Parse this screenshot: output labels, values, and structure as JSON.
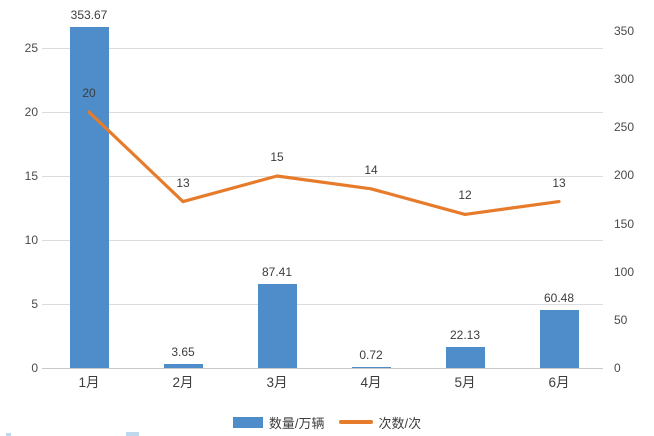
{
  "chart_data": {
    "type": "bar",
    "subtype": "combo-bar-line-dual-axis",
    "title": "",
    "categories": [
      "1月",
      "2月",
      "3月",
      "4月",
      "5月",
      "6月"
    ],
    "series": [
      {
        "name": "数量/万辆",
        "type": "bar",
        "y_axis": "right",
        "color": "#4e8cca",
        "values": [
          353.67,
          3.65,
          87.41,
          0.72,
          22.13,
          60.48
        ],
        "labels": [
          "353.67",
          "3.65",
          "87.41",
          "0.72",
          "22.13",
          "60.48"
        ]
      },
      {
        "name": "次数/次",
        "type": "line",
        "y_axis": "left",
        "color": "#e67c2b",
        "values": [
          20,
          13,
          15,
          14,
          12,
          13
        ],
        "labels": [
          "20",
          "13",
          "15",
          "14",
          "12",
          "13"
        ]
      }
    ],
    "left_axis": {
      "ticks": [
        0,
        5,
        10,
        15,
        20,
        25
      ],
      "range": [
        0,
        27.2
      ]
    },
    "right_axis": {
      "ticks": [
        0,
        50,
        100,
        150,
        200,
        250,
        300,
        350
      ],
      "range": [
        0,
        361
      ]
    },
    "grid": "horizontal",
    "legend_position": "bottom",
    "xlabel": "",
    "ylabel_left": "",
    "ylabel_right": ""
  }
}
